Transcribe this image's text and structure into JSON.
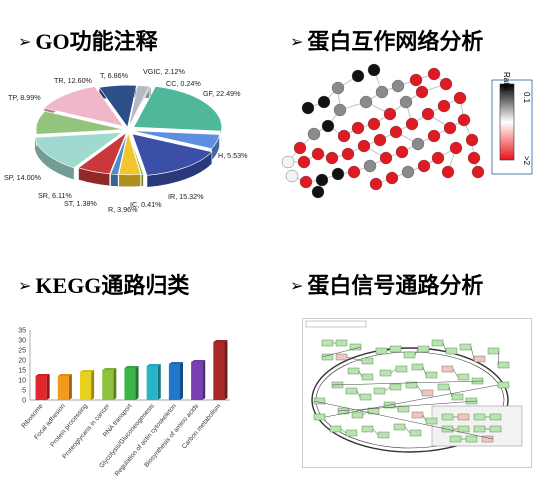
{
  "panels": {
    "go": {
      "arrow": "➢",
      "title": "GO功能注释"
    },
    "ppi": {
      "arrow": "➢",
      "title": "蛋白互作网络分析"
    },
    "kegg": {
      "arrow": "➢",
      "title": "KEGG通路归类"
    },
    "pathway": {
      "arrow": "➢",
      "title": "蛋白信号通路分析"
    }
  },
  "ppi_legend": {
    "title": "Ratio",
    "top_value": "0.1",
    "bottom_value": ">2",
    "colors": {
      "low": "#000000",
      "mid": "#ffffff",
      "high": "#e8141c"
    }
  },
  "chart_data": [
    {
      "type": "pie",
      "slices": [
        {
          "label": "GF, 22.49%",
          "value": 22.49,
          "color": "#4fb89a"
        },
        {
          "label": "H, 5.53%",
          "value": 5.53,
          "color": "#5d8ee0"
        },
        {
          "label": "IR, 15.32%",
          "value": 15.32,
          "color": "#3b4fa8"
        },
        {
          "label": "IC, 0.41%",
          "value": 0.41,
          "color": "#8fb63f"
        },
        {
          "label": "R, 3.96%",
          "value": 3.96,
          "color": "#f2c52e"
        },
        {
          "label": "ST, 1.38%",
          "value": 1.38,
          "color": "#4e8cc7"
        },
        {
          "label": "SR, 6.11%",
          "value": 6.11,
          "color": "#c9393c"
        },
        {
          "label": "SP, 14.00%",
          "value": 14.0,
          "color": "#9fd9cf"
        },
        {
          "label": "TP, 8.99%",
          "value": 8.99,
          "color": "#93c47d"
        },
        {
          "label": "TR, 12.60%",
          "value": 12.6,
          "color": "#f1b6c9"
        },
        {
          "label": "T, 6.86%",
          "value": 6.86,
          "color": "#2c4f8a"
        },
        {
          "label": "VGIC, 2.12%",
          "value": 2.12,
          "color": "#b6b8c4"
        },
        {
          "label": "CC, 0.24%",
          "value": 0.24,
          "color": "#7a7a7a"
        }
      ]
    },
    {
      "type": "bar",
      "categories": [
        "Ribosome",
        "Focal adhesion",
        "Protein processing",
        "Proteoglycans in cancer",
        "RNA transport",
        "Glycolysis/Gluconeogenesis",
        "Regulation of actin cytoskeleton",
        "Biosynthesis of amino acids",
        "Carbon metabolism"
      ],
      "values": [
        12,
        12,
        14,
        15,
        16,
        17,
        18,
        19,
        29
      ],
      "colors": [
        "#e3262b",
        "#f39a1e",
        "#e8d21f",
        "#8fc23d",
        "#3cb44a",
        "#27b4c8",
        "#2177c9",
        "#7a3fb5",
        "#a9282a"
      ],
      "ylim": [
        0,
        35
      ],
      "yticks": [
        0,
        5,
        10,
        15,
        20,
        25,
        30,
        35
      ]
    }
  ]
}
